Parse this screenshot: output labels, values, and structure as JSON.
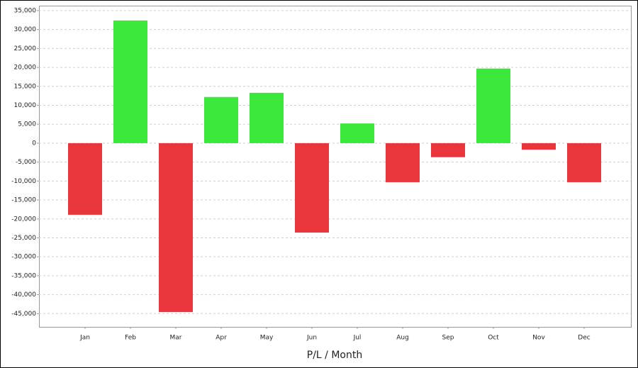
{
  "chart_data": {
    "type": "bar",
    "x_label": "P/L / Month",
    "categories": [
      "Jan",
      "Feb",
      "Mar",
      "Apr",
      "May",
      "Jun",
      "Jul",
      "Aug",
      "Sep",
      "Oct",
      "Nov",
      "Dec"
    ],
    "values": [
      -18900,
      32400,
      -44600,
      12200,
      13300,
      -23600,
      5200,
      -10300,
      -3700,
      19700,
      -1700,
      -10300
    ],
    "positive_color": "#3de83d",
    "negative_color": "#e8363c",
    "ylim": [
      -48500,
      36300
    ],
    "yticks": [
      {
        "value": -45000,
        "label": "-45,000"
      },
      {
        "value": -40000,
        "label": "-40,000"
      },
      {
        "value": -35000,
        "label": "-35,000"
      },
      {
        "value": -30000,
        "label": "-30,000"
      },
      {
        "value": -25000,
        "label": "-25,000"
      },
      {
        "value": -20000,
        "label": "-20,000"
      },
      {
        "value": -15000,
        "label": "-15,000"
      },
      {
        "value": -10000,
        "label": "-10,000"
      },
      {
        "value": -5000,
        "label": "-5,000"
      },
      0,
      {
        "value": 5000,
        "label": "5,000"
      },
      {
        "value": 10000,
        "label": "10,000"
      },
      {
        "value": 15000,
        "label": "15,000"
      },
      {
        "value": 20000,
        "label": "20,000"
      },
      {
        "value": 25000,
        "label": "25,000"
      },
      {
        "value": 30000,
        "label": "30,000"
      },
      {
        "value": 35000,
        "label": "35,000"
      }
    ],
    "grid": true
  }
}
